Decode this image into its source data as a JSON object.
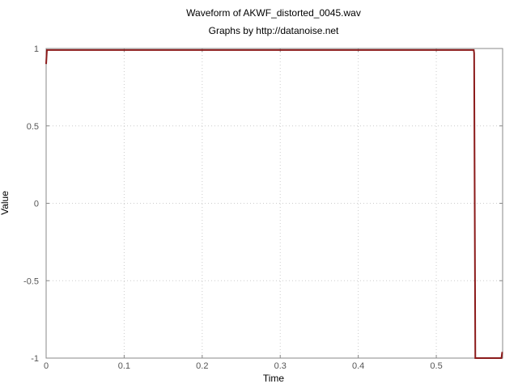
{
  "chart_data": {
    "type": "line",
    "title": "Waveform of AKWF_distorted_0045.wav",
    "subtitle": "Graphs by http://datanoise.net",
    "xlabel": "Time",
    "ylabel": "Value",
    "xlim": [
      0,
      0.585
    ],
    "ylim": [
      -1,
      1
    ],
    "grid": true,
    "x_ticks": [
      {
        "value": 0,
        "label": "0"
      },
      {
        "value": 0.1,
        "label": "0.1"
      },
      {
        "value": 0.2,
        "label": "0.2"
      },
      {
        "value": 0.3,
        "label": "0.3"
      },
      {
        "value": 0.4,
        "label": "0.4"
      },
      {
        "value": 0.5,
        "label": "0.5"
      }
    ],
    "y_ticks": [
      {
        "value": 1,
        "label": "1"
      },
      {
        "value": 0.5,
        "label": "0.5"
      },
      {
        "value": 0,
        "label": "0"
      },
      {
        "value": -0.5,
        "label": "-0.5"
      },
      {
        "value": -1,
        "label": "-1"
      }
    ],
    "series": [
      {
        "color": "#8b1a1a",
        "points": [
          [
            0,
            0.9
          ],
          [
            0.001,
            0.99
          ],
          [
            0.548,
            0.99
          ],
          [
            0.5485,
            0.97
          ],
          [
            0.55,
            -1.0
          ],
          [
            0.5835,
            -1.0
          ],
          [
            0.5845,
            -0.96
          ]
        ]
      }
    ]
  }
}
